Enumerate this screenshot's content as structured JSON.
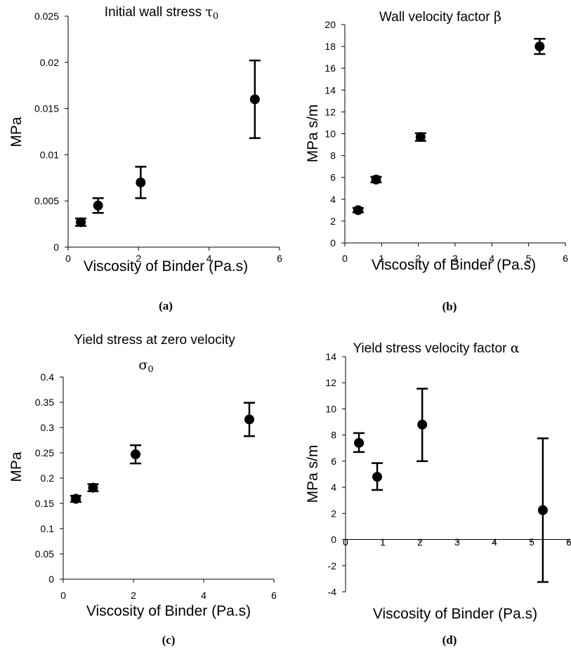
{
  "chart_data": [
    {
      "type": "scatter",
      "title": "Initial wall stress τ₀",
      "xlabel": "Viscosity of Binder (Pa.s)",
      "ylabel": "MPa",
      "caption": "(a)",
      "xlim": [
        0,
        6
      ],
      "ylim": [
        0,
        0.025
      ],
      "xticks": [
        "0",
        "2",
        "4",
        "6"
      ],
      "yticks": [
        "0",
        "0.005",
        "0.01",
        "0.015",
        "0.02",
        "0.025"
      ],
      "grid": false,
      "points": [
        {
          "x": 0.36,
          "y": 0.0027,
          "err_low": 0.0023,
          "err_high": 0.0031
        },
        {
          "x": 0.85,
          "y": 0.0045,
          "err_low": 0.0037,
          "err_high": 0.0053
        },
        {
          "x": 2.06,
          "y": 0.007,
          "err_low": 0.0053,
          "err_high": 0.0087
        },
        {
          "x": 5.3,
          "y": 0.016,
          "err_low": 0.0118,
          "err_high": 0.0202
        }
      ]
    },
    {
      "type": "scatter",
      "title": "Wall velocity factor β",
      "xlabel": "Viscosity of Binder (Pa.s)",
      "ylabel": "MPa s/m",
      "caption": "(b)",
      "xlim": [
        0,
        6
      ],
      "ylim": [
        0,
        20
      ],
      "xticks": [
        "0",
        "1",
        "2",
        "3",
        "4",
        "5",
        "6"
      ],
      "yticks": [
        "0",
        "2",
        "4",
        "6",
        "8",
        "10",
        "12",
        "14",
        "16",
        "18",
        "20"
      ],
      "grid": false,
      "points": [
        {
          "x": 0.36,
          "y": 3.0,
          "err_low": 2.8,
          "err_high": 3.2
        },
        {
          "x": 0.85,
          "y": 5.8,
          "err_low": 5.55,
          "err_high": 6.05
        },
        {
          "x": 2.06,
          "y": 9.7,
          "err_low": 9.35,
          "err_high": 10.05
        },
        {
          "x": 5.3,
          "y": 18.0,
          "err_low": 17.3,
          "err_high": 18.7
        }
      ]
    },
    {
      "type": "scatter",
      "title": "Yield stress at zero velocity",
      "title_line2": "σ₀",
      "xlabel": "Viscosity of Binder (Pa.s)",
      "ylabel": "MPa",
      "caption": "(c)",
      "xlim": [
        0,
        6
      ],
      "ylim": [
        0,
        0.4
      ],
      "xticks": [
        "0",
        "2",
        "4",
        "6"
      ],
      "yticks": [
        "0",
        "0.05",
        "0.1",
        "0.15",
        "0.2",
        "0.25",
        "0.3",
        "0.35",
        "0.4"
      ],
      "grid": false,
      "points": [
        {
          "x": 0.36,
          "y": 0.159,
          "err_low": 0.153,
          "err_high": 0.165
        },
        {
          "x": 0.85,
          "y": 0.181,
          "err_low": 0.174,
          "err_high": 0.188
        },
        {
          "x": 2.06,
          "y": 0.247,
          "err_low": 0.229,
          "err_high": 0.265
        },
        {
          "x": 5.3,
          "y": 0.316,
          "err_low": 0.283,
          "err_high": 0.349
        }
      ]
    },
    {
      "type": "scatter",
      "title": "Yield stress velocity factor α",
      "xlabel": "Viscosity of Binder (Pa.s)",
      "ylabel": "MPa s/m",
      "caption": "(d)",
      "xlim": [
        0,
        6
      ],
      "ylim": [
        -4,
        14
      ],
      "xticks": [
        "0",
        "1",
        "2",
        "3",
        "4",
        "5",
        "6"
      ],
      "yticks": [
        "-4",
        "-2",
        "0",
        "2",
        "4",
        "6",
        "8",
        "10",
        "12",
        "14"
      ],
      "grid": false,
      "points": [
        {
          "x": 0.36,
          "y": 7.4,
          "err_low": 6.7,
          "err_high": 8.15
        },
        {
          "x": 0.85,
          "y": 4.8,
          "err_low": 3.8,
          "err_high": 5.85
        },
        {
          "x": 2.06,
          "y": 8.8,
          "err_low": 6.0,
          "err_high": 11.55
        },
        {
          "x": 5.3,
          "y": 2.25,
          "err_low": -3.25,
          "err_high": 7.75
        }
      ]
    }
  ]
}
